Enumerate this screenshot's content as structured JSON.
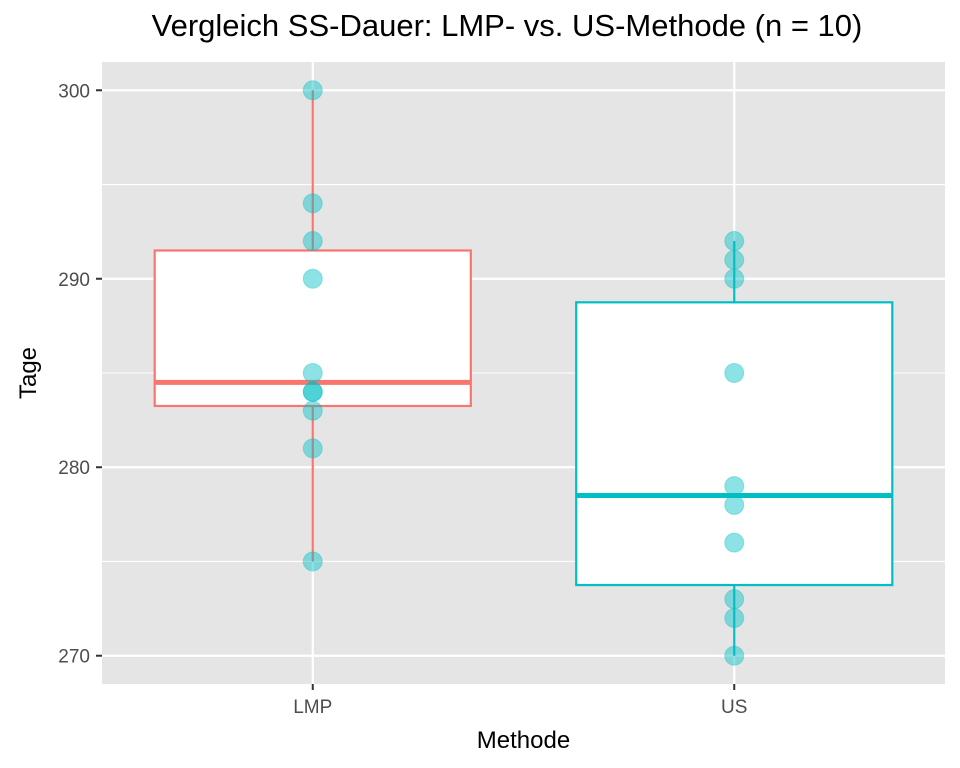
{
  "chart_data": {
    "type": "boxplot",
    "title": "Vergleich SS-Dauer: LMP- vs. US-Methode (n = 10)",
    "xlabel": "Methode",
    "ylabel": "Tage",
    "categories": [
      "LMP",
      "US"
    ],
    "ylim": [
      268.5,
      301.5
    ],
    "yticks": [
      270,
      280,
      290,
      300
    ],
    "grid": true,
    "legend": "none",
    "colors": {
      "LMP": "#f8766d",
      "US": "#00bfc4",
      "points": "#00bfc4",
      "panel": "#e5e5e5",
      "grid": "#ffffff"
    },
    "boxes": [
      {
        "category": "LMP",
        "q1": 283.25,
        "median": 284.5,
        "q3": 291.5,
        "whisker_low": 275,
        "whisker_high": 300
      },
      {
        "category": "US",
        "q1": 273.75,
        "median": 278.5,
        "q3": 288.75,
        "whisker_low": 270,
        "whisker_high": 292
      }
    ],
    "points": [
      {
        "category": "LMP",
        "values": [
          300,
          294,
          292,
          290,
          285,
          284,
          284,
          283,
          281,
          275
        ]
      },
      {
        "category": "US",
        "values": [
          292,
          291,
          290,
          285,
          279,
          278,
          276,
          273,
          272,
          270
        ]
      }
    ]
  }
}
